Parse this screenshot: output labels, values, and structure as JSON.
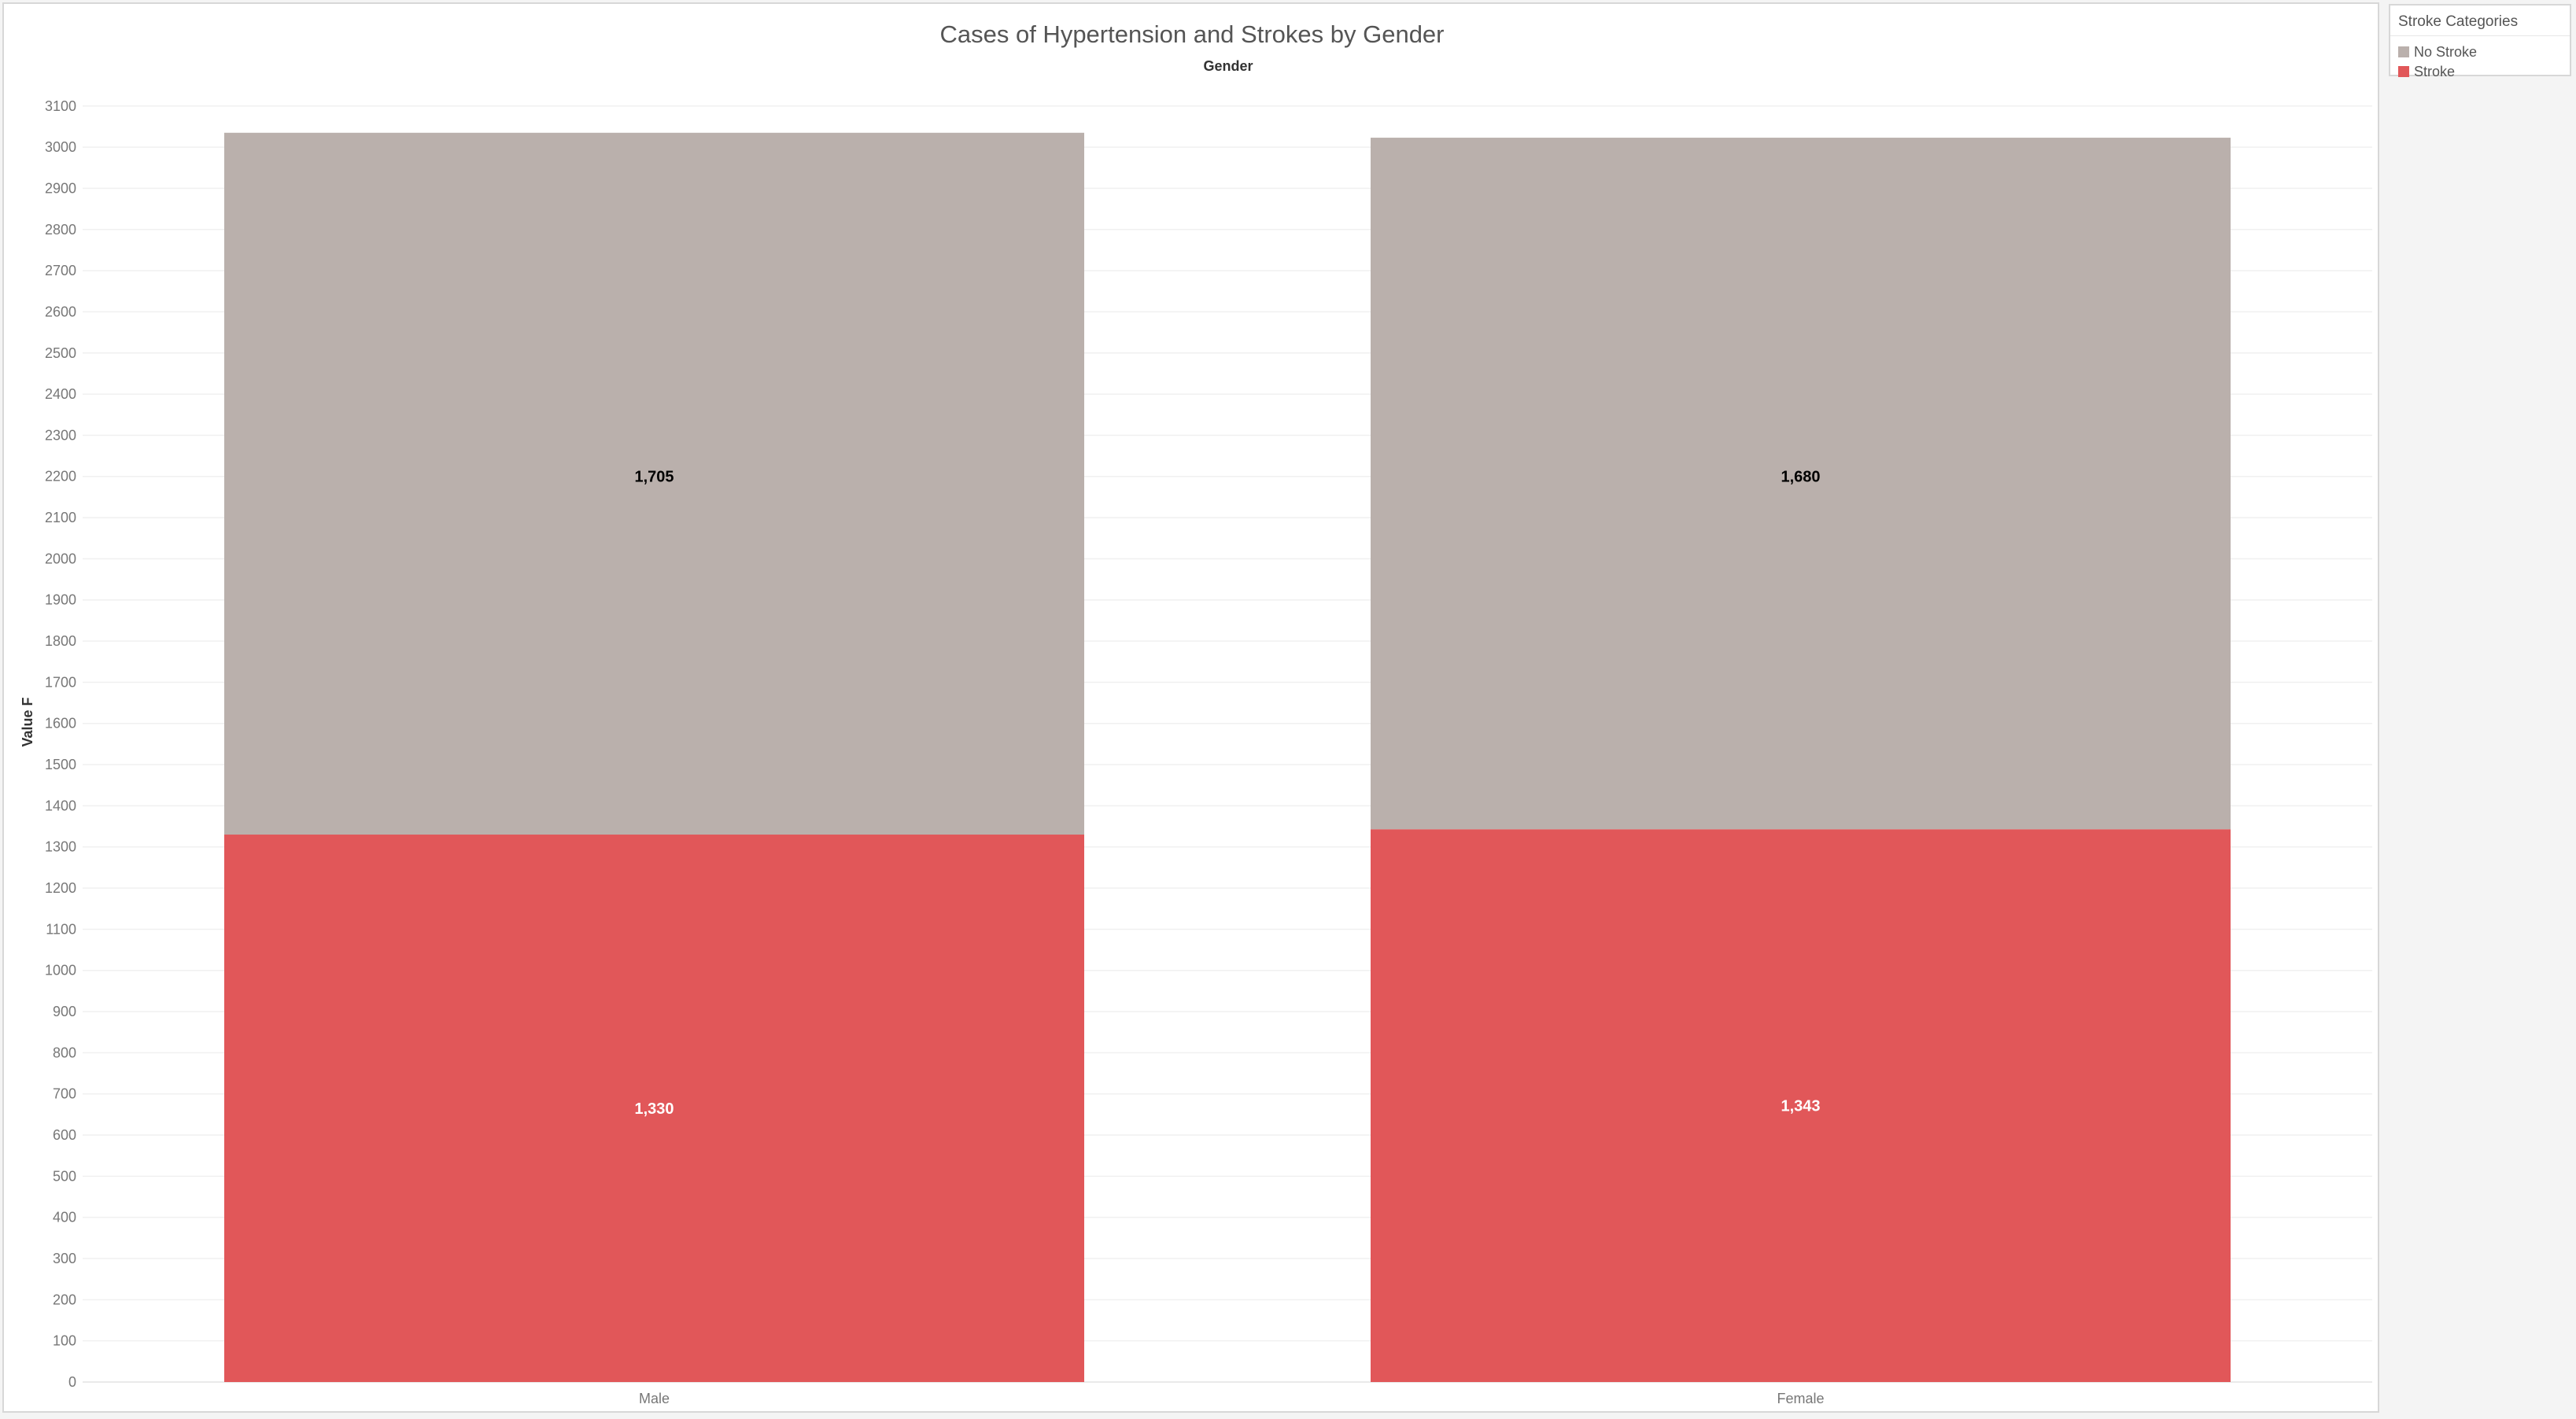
{
  "chart_data": {
    "type": "bar",
    "stacked": true,
    "title": "Cases of Hypertension and Strokes by Gender",
    "subtitle": "Gender",
    "ylabel": "Value F",
    "xlabel": "",
    "categories": [
      "Male",
      "Female"
    ],
    "series": [
      {
        "name": "Stroke",
        "values": [
          1330,
          1343
        ],
        "labels": [
          "1,330",
          "1,343"
        ],
        "color": "#e15759",
        "label_color": "#ffffff"
      },
      {
        "name": "No Stroke",
        "values": [
          1705,
          1680
        ],
        "labels": [
          "1,705",
          "1,680"
        ],
        "color": "#bab0ac",
        "label_color": "#000000"
      }
    ],
    "ylim": [
      0,
      3100
    ],
    "yticks": [
      0,
      100,
      200,
      300,
      400,
      500,
      600,
      700,
      800,
      900,
      1000,
      1100,
      1200,
      1300,
      1400,
      1500,
      1600,
      1700,
      1800,
      1900,
      2000,
      2100,
      2200,
      2300,
      2400,
      2500,
      2600,
      2700,
      2800,
      2900,
      3000,
      3100
    ],
    "grid": true,
    "legend": {
      "title": "Stroke Categories",
      "placement": "right",
      "items": [
        {
          "label": "No Stroke",
          "color": "#bab0ac"
        },
        {
          "label": "Stroke",
          "color": "#e15759"
        }
      ]
    }
  }
}
